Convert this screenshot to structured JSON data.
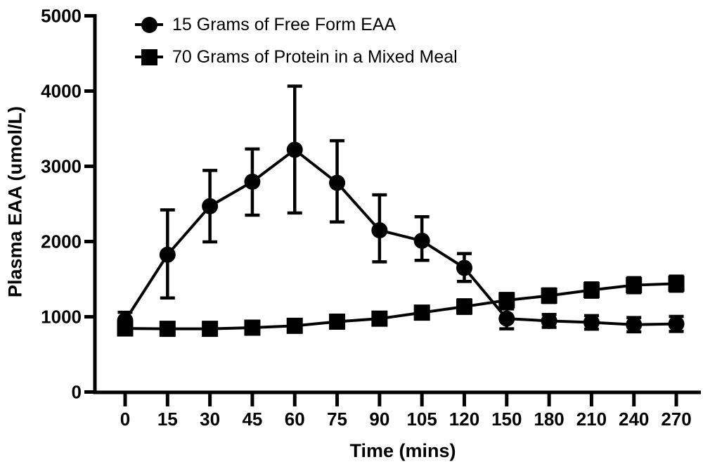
{
  "figure": {
    "background": "#ffffff",
    "ink_color": "#000000"
  },
  "chart_data": {
    "type": "line",
    "title": "",
    "xlabel": "Time (mins)",
    "ylabel": "Plasma EAA (umol/L)",
    "x_categories": [
      0,
      15,
      30,
      45,
      60,
      75,
      90,
      105,
      120,
      150,
      180,
      210,
      240,
      270
    ],
    "x_spacing": "categorical-even",
    "ylim": [
      0,
      5000
    ],
    "yticks": [
      0,
      1000,
      2000,
      3000,
      4000,
      5000
    ],
    "grid": false,
    "legend_position": "top-left-inside",
    "error_bars": true,
    "series": [
      {
        "name": "15 Grams of Free Form EAA",
        "marker": "circle",
        "color": "#000000",
        "values": [
          950,
          1825,
          2470,
          2795,
          3220,
          2780,
          2150,
          2010,
          1650,
          975,
          945,
          925,
          895,
          905
        ],
        "error_up": [
          110,
          595,
          475,
          435,
          845,
          560,
          470,
          320,
          190,
          130,
          85,
          90,
          95,
          100
        ],
        "error_down": [
          110,
          575,
          475,
          445,
          840,
          520,
          420,
          260,
          180,
          135,
          85,
          90,
          95,
          100
        ]
      },
      {
        "name": "70 Grams of Protein in a Mixed Meal",
        "marker": "square",
        "color": "#000000",
        "values": [
          845,
          840,
          840,
          855,
          880,
          935,
          975,
          1055,
          1135,
          1220,
          1280,
          1355,
          1420,
          1440
        ],
        "error_up": [
          60,
          60,
          60,
          60,
          70,
          70,
          80,
          80,
          90,
          90,
          90,
          95,
          100,
          100
        ],
        "error_down": [
          60,
          60,
          60,
          60,
          70,
          70,
          80,
          80,
          90,
          90,
          90,
          95,
          100,
          100
        ]
      }
    ]
  }
}
